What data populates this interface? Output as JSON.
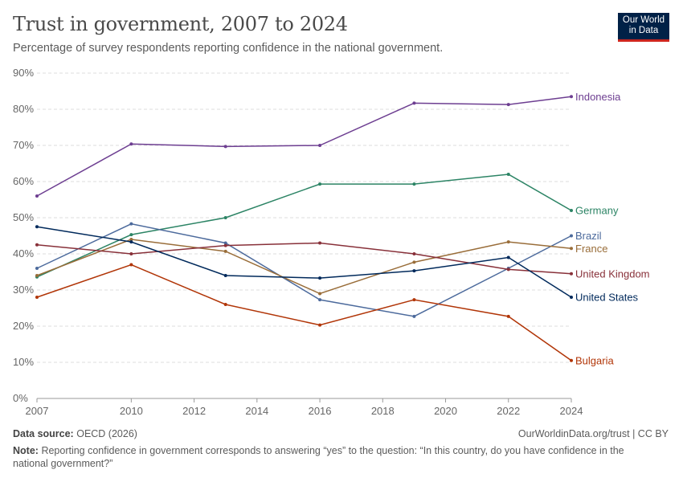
{
  "header": {
    "title": "Trust in government, 2007 to 2024",
    "subtitle": "Percentage of survey respondents reporting confidence in the national government.",
    "logo_text": "Our World in Data"
  },
  "footer": {
    "source_label": "Data source:",
    "source": "OECD (2026)",
    "url": "OurWorldinData.org/trust | CC BY",
    "note_label": "Note:",
    "note": "Reporting confidence in government corresponds to answering “yes” to the question: “In this country, do you have confidence in the national government?”"
  },
  "chart_data": {
    "type": "line",
    "title": "Trust in government, 2007 to 2024",
    "xlim": [
      2007,
      2024
    ],
    "ylim": [
      0,
      90
    ],
    "x_ticks": [
      "2007",
      "2010",
      "2012",
      "2014",
      "2016",
      "2018",
      "2020",
      "2022",
      "2024"
    ],
    "x_tick_values": [
      2007,
      2010,
      2012,
      2014,
      2016,
      2018,
      2020,
      2022,
      2024
    ],
    "y_ticks": [
      "0%",
      "10%",
      "20%",
      "30%",
      "40%",
      "50%",
      "60%",
      "70%",
      "80%",
      "90%"
    ],
    "y_tick_values": [
      0,
      10,
      20,
      30,
      40,
      50,
      60,
      70,
      80,
      90
    ],
    "grid": "horizontal dashed",
    "legend": "inline labels at line ends (right)",
    "x": [
      2007,
      2010,
      2013,
      2016,
      2019,
      2022,
      2024
    ],
    "series": [
      {
        "name": "Indonesia",
        "color": "#6d3e91",
        "values": [
          56,
          70.4,
          69.7,
          70,
          81.7,
          81.3,
          83.5
        ]
      },
      {
        "name": "Germany",
        "color": "#2c8465",
        "values": [
          33.6,
          45.3,
          50,
          59.3,
          59.3,
          62,
          52
        ]
      },
      {
        "name": "Brazil",
        "color": "#4c6a9c",
        "values": [
          36,
          48.3,
          43,
          27.3,
          22.7,
          36,
          45
        ]
      },
      {
        "name": "France",
        "color": "#996d39",
        "values": [
          34,
          44,
          40.7,
          29,
          37.7,
          43.3,
          41.5
        ]
      },
      {
        "name": "United Kingdom",
        "color": "#883039",
        "values": [
          42.5,
          40,
          42.3,
          43,
          40,
          35.7,
          34.5
        ]
      },
      {
        "name": "United States",
        "color": "#00295b",
        "values": [
          47.5,
          43.3,
          34,
          33.3,
          35.3,
          39,
          28
        ]
      },
      {
        "name": "Bulgaria",
        "color": "#b13507",
        "values": [
          28,
          37,
          26,
          20.3,
          27.3,
          22.7,
          10.5
        ]
      }
    ]
  }
}
